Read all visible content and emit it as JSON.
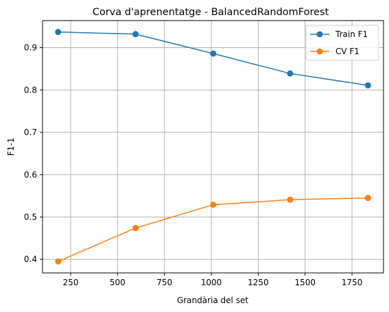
{
  "chart_data": {
    "type": "line",
    "title": "Corva d'aprenentatge - BalancedRandomForest",
    "xlabel": "Grandària del set",
    "ylabel": "F1-1",
    "x": [
      183,
      596,
      1010,
      1420,
      1835
    ],
    "series": [
      {
        "name": "Train F1",
        "color": "#1f77b4",
        "values": [
          0.937,
          0.932,
          0.886,
          0.839,
          0.811
        ]
      },
      {
        "name": "CV F1",
        "color": "#ff7f0e",
        "values": [
          0.395,
          0.474,
          0.529,
          0.541,
          0.545
        ]
      }
    ],
    "xlim": [
      100,
      1918
    ],
    "ylim": [
      0.368,
      0.964
    ],
    "xticks": [
      250,
      500,
      750,
      1000,
      1250,
      1500,
      1750
    ],
    "yticks": [
      0.4,
      0.5,
      0.6,
      0.7,
      0.8,
      0.9
    ],
    "xtick_labels": [
      "250",
      "500",
      "750",
      "1000",
      "1250",
      "1500",
      "1750"
    ],
    "ytick_labels": [
      "0.4",
      "0.5",
      "0.6",
      "0.7",
      "0.8",
      "0.9"
    ],
    "grid": true,
    "legend_position": "top-right"
  }
}
